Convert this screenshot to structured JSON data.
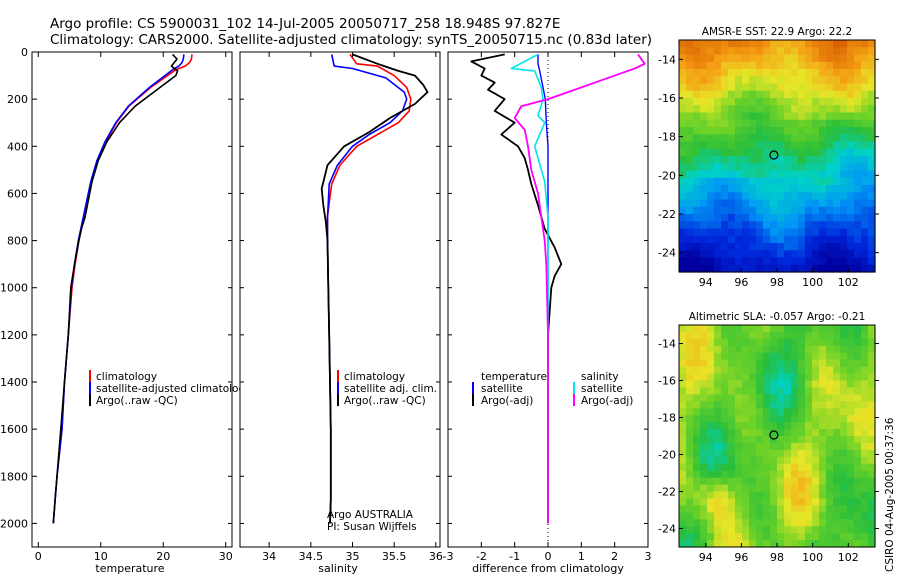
{
  "header": {
    "title_line1": "Argo profile: CS 5900031_102 14-Jul-2005 20050717_258 18.948S 97.827E",
    "title_line2": "Climatology: CARS2000. Satellite-adjusted climatology: synTS_20050715.nc (0.83d later)"
  },
  "colors": {
    "climatology": "#ff0000",
    "satellite": "#0000ff",
    "argo": "#000000",
    "salinity_satellite": "#00e5ee",
    "salinity_argo": "#ff00ff"
  },
  "chart_data": [
    {
      "id": "temperature",
      "type": "line",
      "xlabel": "temperature",
      "xlim": [
        -1,
        31
      ],
      "xticks": [
        0,
        10,
        20,
        30
      ],
      "ylim": [
        2100,
        0
      ],
      "yticks": [
        0,
        200,
        400,
        600,
        800,
        1000,
        1200,
        1400,
        1600,
        1800,
        2000
      ],
      "legend": [
        "climatology",
        "satellite-adjusted climatology",
        "Argo(..raw -QC)"
      ],
      "series": [
        {
          "name": "climatology",
          "color": "#ff0000",
          "width": 1.6,
          "x": [
            24.6,
            24.5,
            24.2,
            23.5,
            22.0,
            18.0,
            14.5,
            12.5,
            10.8,
            9.5,
            8.5,
            7.3,
            6.5,
            5.9,
            5.4,
            4.8,
            4.2,
            3.8,
            3.4,
            3.0,
            2.7,
            2.4
          ],
          "y": [
            10,
            30,
            45,
            60,
            75,
            150,
            230,
            300,
            380,
            460,
            550,
            700,
            800,
            900,
            1000,
            1200,
            1400,
            1600,
            1700,
            1800,
            1900,
            2000
          ]
        },
        {
          "name": "satellite-adjusted climatology",
          "color": "#0000ff",
          "width": 1.6,
          "x": [
            23.3,
            23.2,
            23.0,
            22.5,
            21.5,
            17.8,
            14.4,
            12.4,
            10.7,
            9.4,
            8.4,
            7.2,
            6.4,
            5.8,
            5.3,
            4.8,
            4.2,
            3.8,
            3.4,
            3.0,
            2.7,
            2.4
          ],
          "y": [
            10,
            30,
            45,
            60,
            75,
            150,
            230,
            300,
            380,
            460,
            550,
            700,
            800,
            900,
            1000,
            1200,
            1400,
            1600,
            1700,
            1800,
            1900,
            2000
          ]
        },
        {
          "name": "Argo(..raw -QC)",
          "color": "#000000",
          "width": 1.6,
          "x": [
            21.5,
            22.2,
            21.3,
            22.3,
            22.0,
            21.0,
            19.5,
            15.5,
            13.0,
            11.0,
            9.6,
            8.6,
            7.5,
            6.9,
            6.5,
            5.8,
            5.2,
            4.8,
            4.2,
            3.6,
            3.0,
            2.7,
            2.4
          ],
          "y": [
            10,
            30,
            60,
            80,
            100,
            120,
            150,
            230,
            300,
            380,
            460,
            550,
            700,
            750,
            800,
            900,
            1000,
            1200,
            1400,
            1600,
            1800,
            1900,
            2000
          ]
        }
      ]
    },
    {
      "id": "salinity",
      "type": "line",
      "xlabel": "salinity",
      "xlim": [
        33.65,
        36.05
      ],
      "xticks": [
        34,
        34.5,
        35,
        35.5,
        36
      ],
      "ylim": [
        2100,
        0
      ],
      "legend": [
        "climatology",
        "satellite adj. clim.",
        "Argo(..raw -QC)"
      ],
      "annotation": [
        "Argo AUSTRALIA",
        "PI: Susan Wijffels"
      ],
      "series": [
        {
          "name": "climatology",
          "color": "#ff0000",
          "width": 1.6,
          "x": [
            34.97,
            35.05,
            35.3,
            35.5,
            35.65,
            35.7,
            35.68,
            35.55,
            35.3,
            35.05,
            34.85,
            34.75,
            34.72,
            34.7,
            34.7,
            34.71,
            34.72,
            34.73,
            34.74,
            34.74,
            34.74,
            34.73
          ],
          "y": [
            10,
            50,
            60,
            100,
            150,
            200,
            250,
            300,
            350,
            400,
            480,
            560,
            640,
            700,
            800,
            1000,
            1200,
            1400,
            1600,
            1800,
            1900,
            2000
          ]
        },
        {
          "name": "satellite adj. clim.",
          "color": "#0000ff",
          "width": 1.6,
          "x": [
            34.75,
            34.78,
            35.0,
            35.4,
            35.62,
            35.65,
            35.6,
            35.45,
            35.2,
            35.0,
            34.82,
            34.72,
            34.71,
            34.7,
            34.7,
            34.71,
            34.72,
            34.73,
            34.74,
            34.74,
            34.74,
            34.73
          ],
          "y": [
            10,
            60,
            70,
            110,
            170,
            200,
            250,
            300,
            350,
            400,
            480,
            560,
            640,
            700,
            800,
            1000,
            1200,
            1400,
            1600,
            1800,
            1900,
            2000
          ]
        },
        {
          "name": "Argo(..raw -QC)",
          "color": "#000000",
          "width": 1.8,
          "x": [
            35.0,
            35.3,
            35.55,
            35.75,
            35.85,
            35.9,
            35.75,
            35.45,
            35.2,
            34.9,
            34.7,
            34.63,
            34.65,
            34.68,
            34.7,
            34.71,
            34.72,
            34.73,
            34.74,
            34.74,
            34.74,
            34.73
          ],
          "y": [
            10,
            50,
            80,
            100,
            140,
            170,
            220,
            280,
            340,
            400,
            480,
            580,
            650,
            720,
            800,
            1000,
            1200,
            1400,
            1600,
            1800,
            1900,
            2000
          ]
        }
      ]
    },
    {
      "id": "difference",
      "type": "line",
      "xlabel": "difference from climatology",
      "xlim": [
        -3,
        3
      ],
      "xticks": [
        -3,
        -2,
        -1,
        0,
        1,
        2,
        3
      ],
      "ylim": [
        2100,
        0
      ],
      "legend_left": [
        "temperature",
        "satellite",
        "Argo(-adj)"
      ],
      "legend_right": [
        "salinity",
        "satellite",
        "Argo(-adj)"
      ],
      "series": [
        {
          "name": "temperature satellite",
          "color": "#0000ff",
          "width": 1.4,
          "x": [
            -0.3,
            -0.3,
            -0.25,
            -0.15,
            -0.08,
            -0.05,
            0.0,
            0.0,
            0.0,
            0.0,
            0.0,
            0.0
          ],
          "y": [
            10,
            50,
            80,
            150,
            200,
            300,
            400,
            600,
            1000,
            1500,
            1800,
            2000
          ]
        },
        {
          "name": "temperature Argo(-adj)",
          "color": "#000000",
          "width": 1.8,
          "x": [
            -1.3,
            -2.3,
            -1.9,
            -2.0,
            -1.6,
            -1.8,
            -1.3,
            -1.6,
            -1.0,
            -1.4,
            -0.9,
            -0.7,
            -0.6,
            -0.5,
            -0.3,
            -0.1,
            0.2,
            0.4,
            0.2,
            0.1,
            0.0,
            0.0,
            0.0,
            0.0
          ],
          "y": [
            10,
            40,
            70,
            100,
            130,
            160,
            200,
            250,
            300,
            350,
            400,
            450,
            500,
            560,
            650,
            750,
            830,
            900,
            950,
            1000,
            1200,
            1500,
            1800,
            2000
          ]
        },
        {
          "name": "salinity satellite",
          "color": "#00e5ee",
          "width": 1.6,
          "x": [
            -0.3,
            -1.1,
            -0.4,
            -0.2,
            -0.15,
            -0.3,
            -0.1,
            -0.4,
            -0.1,
            0.0,
            0.0,
            0.0,
            0.0,
            0.0
          ],
          "y": [
            10,
            70,
            80,
            150,
            200,
            270,
            300,
            400,
            550,
            700,
            900,
            1300,
            1700,
            2000
          ]
        },
        {
          "name": "salinity Argo(-adj)",
          "color": "#ff00ff",
          "width": 1.8,
          "x": [
            2.7,
            2.9,
            2.6,
            1.6,
            0.6,
            0.0,
            -0.8,
            -1.0,
            -0.7,
            -0.6,
            -0.5,
            -0.3,
            -0.2,
            -0.1,
            -0.05,
            0.0,
            0.0
          ],
          "y": [
            10,
            50,
            70,
            120,
            170,
            200,
            230,
            280,
            330,
            400,
            500,
            600,
            700,
            800,
            900,
            1200,
            2000
          ]
        }
      ]
    },
    {
      "id": "sst_map",
      "type": "heatmap",
      "title": "AMSR-E SST: 22.9 Argo: 22.2",
      "xlim": [
        92.5,
        103.5
      ],
      "xticks": [
        94,
        96,
        98,
        100,
        102
      ],
      "ylim": [
        -25,
        -13
      ],
      "yticks": [
        -14,
        -16,
        -18,
        -20,
        -22,
        -24
      ],
      "marker": {
        "lon": 97.827,
        "lat": -18.948
      }
    },
    {
      "id": "sla_map",
      "type": "heatmap",
      "title": "Altimetric SLA: -0.057 Argo: -0.21",
      "xlim": [
        92.5,
        103.5
      ],
      "xticks": [
        94,
        96,
        98,
        100,
        102
      ],
      "ylim": [
        -25,
        -13
      ],
      "yticks": [
        -14,
        -16,
        -18,
        -20,
        -22,
        -24
      ],
      "marker": {
        "lon": 97.827,
        "lat": -18.948
      }
    }
  ],
  "footer": {
    "credit": "CSIRO 04-Aug-2005 00:37:36"
  }
}
